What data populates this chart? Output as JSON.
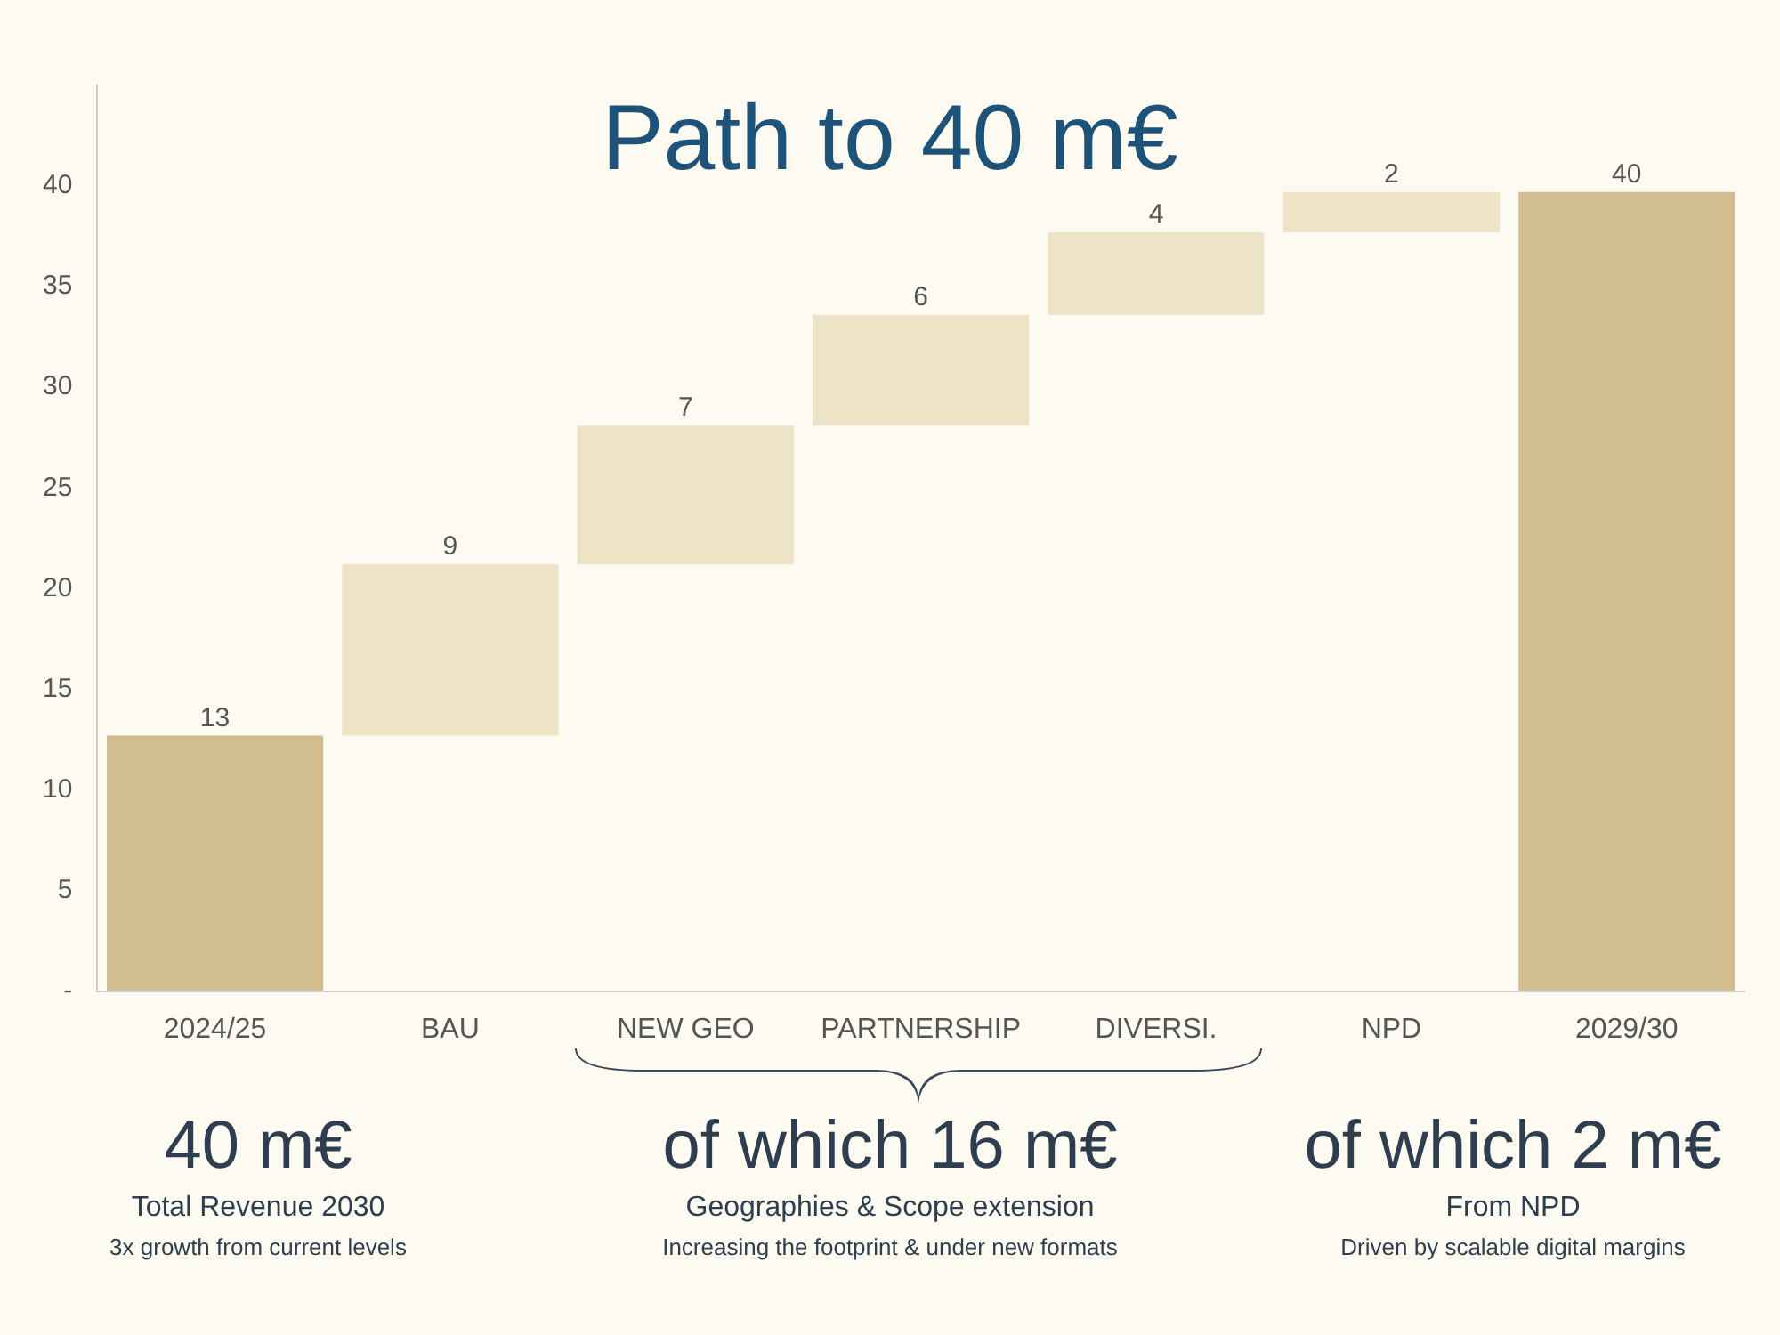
{
  "chart_data": {
    "type": "bar",
    "title": "Path to 40 m€",
    "categories": [
      "2024/25",
      "BAU",
      "NEW GEO",
      "PARTNERSHIP",
      "DIVERSI.",
      "NPD",
      "2029/30"
    ],
    "values": [
      12.7,
      8.5,
      6.9,
      5.5,
      4.1,
      2,
      39.7
    ],
    "base": [
      0,
      12.7,
      21.2,
      28.1,
      33.6,
      37.7,
      0
    ],
    "colors": [
      "#d2bd8f",
      "#ede3c7",
      "#ede3c7",
      "#ede3c7",
      "#ede3c7",
      "#ede3c7",
      "#d2bd8f"
    ],
    "value_labels": [
      "13",
      "9",
      "7",
      "6",
      "4",
      "2",
      "40"
    ],
    "ylim": [
      0,
      45
    ],
    "yticks": [
      {
        "value": 0,
        "label": "-"
      },
      5,
      10,
      15,
      20,
      25,
      30,
      35,
      40
    ],
    "grid": false,
    "annotations": [
      "40 m€",
      "Total Revenue 2030",
      "3x growth from current levels",
      "of which 16 m€",
      "Geographies & Scope extension",
      "Increasing the footprint & under new formats",
      "of which 2 m€",
      "From NPD",
      "Driven by scalable digital margins"
    ]
  }
}
